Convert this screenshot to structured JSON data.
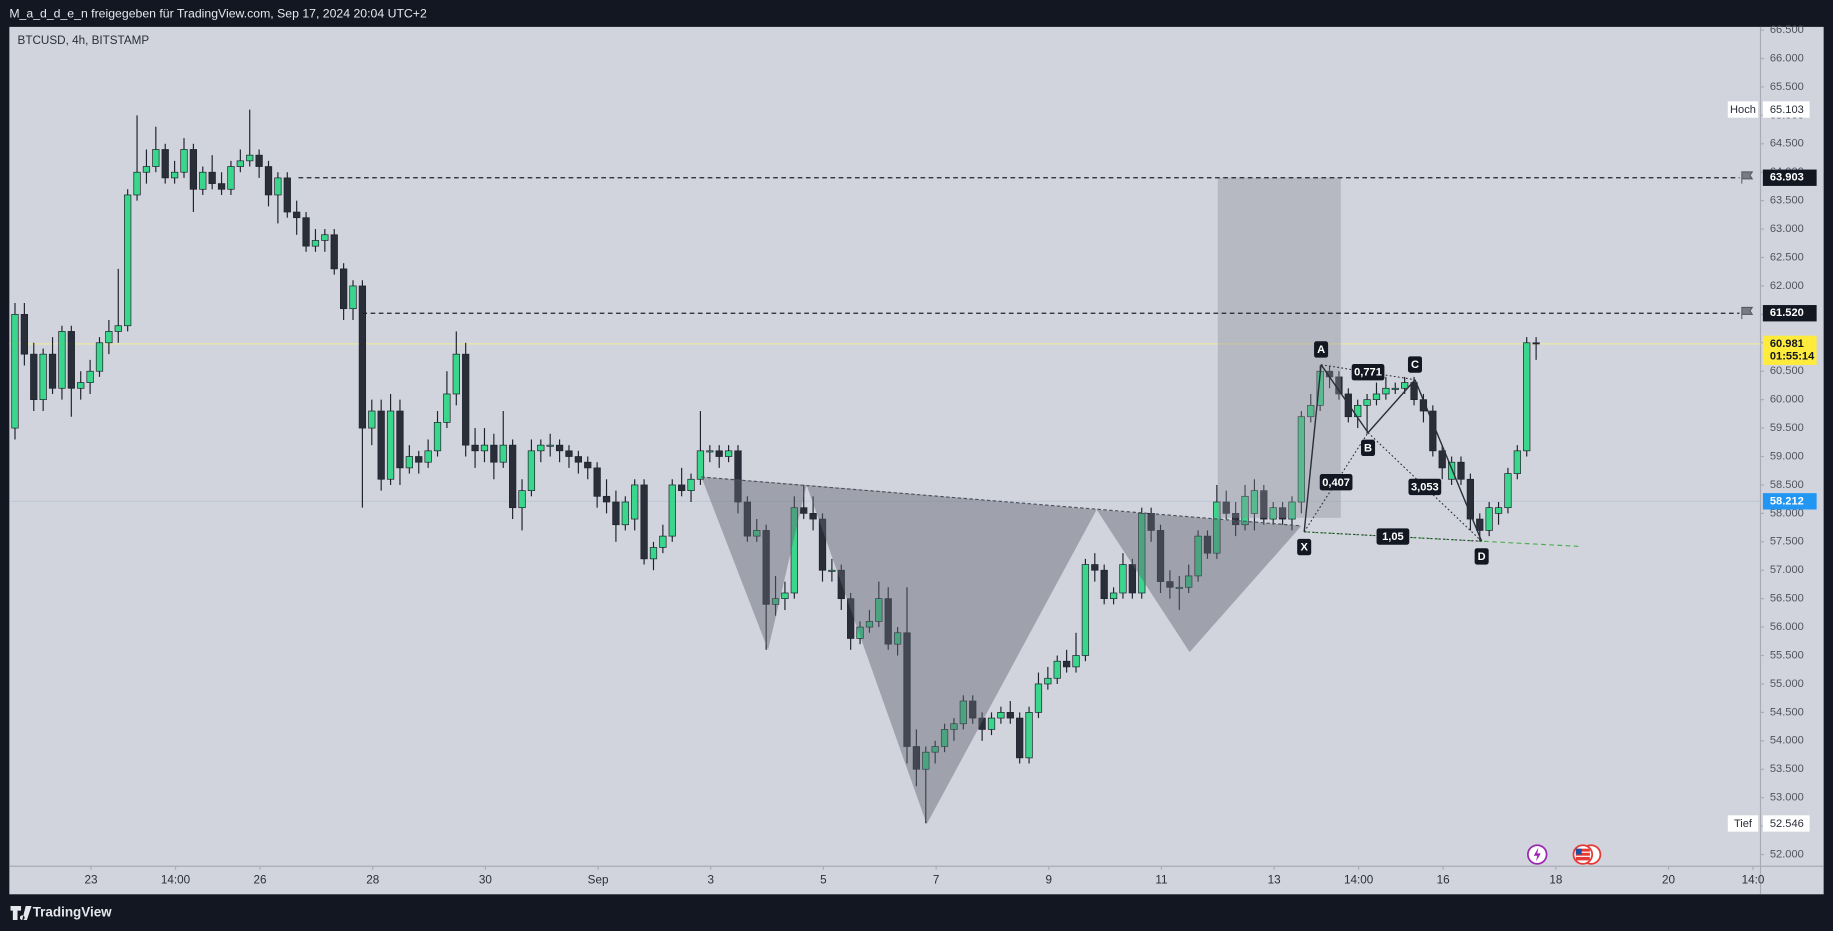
{
  "header": {
    "text": "M_a_d_d_e_n freigegeben für TradingView.com, Sep 17, 2024 20:04 UTC+2"
  },
  "chart_data": {
    "type": "candlestick",
    "title": "BTCUSD, 4h, BITSTAMP",
    "up_color": "#3ad68c",
    "down_color": "#2a2e39",
    "xlim": [
      -0.6,
      185.9
    ],
    "xticks": [
      {
        "value": 8.1,
        "label": "23"
      },
      {
        "value": 17.1,
        "label": "14:00"
      },
      {
        "value": 26.1,
        "label": "26"
      },
      {
        "value": 38.1,
        "label": "28"
      },
      {
        "value": 50.1,
        "label": "30"
      },
      {
        "value": 62.1,
        "label": "Sep"
      },
      {
        "value": 74.1,
        "label": "3"
      },
      {
        "value": 86.1,
        "label": "5"
      },
      {
        "value": 98.1,
        "label": "7"
      },
      {
        "value": 110.1,
        "label": "9"
      },
      {
        "value": 122.1,
        "label": "11"
      },
      {
        "value": 134.1,
        "label": "13"
      },
      {
        "value": 143.1,
        "label": "14:00"
      },
      {
        "value": 152.1,
        "label": "16"
      },
      {
        "value": 164.1,
        "label": "18"
      },
      {
        "value": 176.1,
        "label": "20"
      },
      {
        "value": 185.1,
        "label": "14:0"
      }
    ],
    "ylim": [
      51794,
      66556
    ],
    "yticks": [
      {
        "value": 52000,
        "label": "52.000"
      },
      {
        "value": 52500,
        "label": "52.500"
      },
      {
        "value": 53000,
        "label": "53.000"
      },
      {
        "value": 53500,
        "label": "53.500"
      },
      {
        "value": 54000,
        "label": "54.000"
      },
      {
        "value": 54500,
        "label": "54.500"
      },
      {
        "value": 55000,
        "label": "55.000"
      },
      {
        "value": 55500,
        "label": "55.500"
      },
      {
        "value": 56000,
        "label": "56.000"
      },
      {
        "value": 56500,
        "label": "56.500"
      },
      {
        "value": 57000,
        "label": "57.000"
      },
      {
        "value": 57500,
        "label": "57.500"
      },
      {
        "value": 58000,
        "label": "58.000"
      },
      {
        "value": 58500,
        "label": "58.500"
      },
      {
        "value": 59000,
        "label": "59.000"
      },
      {
        "value": 59500,
        "label": "59.500"
      },
      {
        "value": 60000,
        "label": "60.000"
      },
      {
        "value": 60500,
        "label": "60.500"
      },
      {
        "value": 61000,
        "label": "61.000"
      },
      {
        "value": 61500,
        "label": "61.500"
      },
      {
        "value": 62000,
        "label": "62.000"
      },
      {
        "value": 62500,
        "label": "62.500"
      },
      {
        "value": 63000,
        "label": "63.000"
      },
      {
        "value": 63500,
        "label": "63.500"
      },
      {
        "value": 64000,
        "label": "64.000"
      },
      {
        "value": 64500,
        "label": "64.500"
      },
      {
        "value": 65000,
        "label": "65.000"
      },
      {
        "value": 65500,
        "label": "65.500"
      },
      {
        "value": 66000,
        "label": "66.000"
      },
      {
        "value": 66500,
        "label": "66.500"
      }
    ],
    "ohlc": [
      [
        59500,
        61700,
        59300,
        61500
      ],
      [
        61500,
        61700,
        60600,
        60800
      ],
      [
        60800,
        61000,
        59800,
        60000
      ],
      [
        60000,
        60900,
        59800,
        60800
      ],
      [
        60800,
        61100,
        60100,
        60200
      ],
      [
        60200,
        61300,
        60000,
        61200
      ],
      [
        61200,
        61300,
        59700,
        60200
      ],
      [
        60200,
        60500,
        60000,
        60300
      ],
      [
        60300,
        60700,
        60100,
        60500
      ],
      [
        60500,
        61100,
        60400,
        61000
      ],
      [
        61000,
        61400,
        60800,
        61200
      ],
      [
        61200,
        62300,
        61000,
        61300
      ],
      [
        61300,
        63700,
        61200,
        63600
      ],
      [
        63600,
        65000,
        63500,
        64000
      ],
      [
        64000,
        64400,
        63800,
        64100
      ],
      [
        64100,
        64800,
        64000,
        64400
      ],
      [
        64400,
        64500,
        63800,
        63900
      ],
      [
        63900,
        64200,
        63800,
        64000
      ],
      [
        64000,
        64600,
        63900,
        64400
      ],
      [
        64400,
        64500,
        63300,
        63700
      ],
      [
        63700,
        64100,
        63600,
        64000
      ],
      [
        64000,
        64300,
        63700,
        63800
      ],
      [
        63800,
        64000,
        63600,
        63700
      ],
      [
        63700,
        64200,
        63600,
        64100
      ],
      [
        64100,
        64400,
        64000,
        64200
      ],
      [
        64200,
        65100,
        64100,
        64300
      ],
      [
        64300,
        64400,
        63900,
        64100
      ],
      [
        64100,
        64200,
        63400,
        63600
      ],
      [
        63600,
        64000,
        63100,
        63900
      ],
      [
        63900,
        64000,
        63200,
        63300
      ],
      [
        63300,
        63500,
        62900,
        63200
      ],
      [
        63200,
        63300,
        62600,
        62700
      ],
      [
        62700,
        63000,
        62600,
        62800
      ],
      [
        62800,
        63000,
        62600,
        62900
      ],
      [
        62900,
        63000,
        62200,
        62300
      ],
      [
        62300,
        62400,
        61400,
        61600
      ],
      [
        61600,
        62100,
        61400,
        62000
      ],
      [
        62000,
        62100,
        58100,
        59500
      ],
      [
        59500,
        60000,
        59200,
        59800
      ],
      [
        59800,
        60000,
        58400,
        58600
      ],
      [
        58600,
        60100,
        58500,
        59800
      ],
      [
        59800,
        60000,
        58500,
        58800
      ],
      [
        58800,
        59200,
        58700,
        59000
      ],
      [
        59000,
        59100,
        58700,
        58900
      ],
      [
        58900,
        59300,
        58800,
        59100
      ],
      [
        59100,
        59800,
        59000,
        59600
      ],
      [
        59600,
        60500,
        59500,
        60100
      ],
      [
        60100,
        61200,
        59900,
        60800
      ],
      [
        60800,
        61000,
        59000,
        59200
      ],
      [
        59200,
        59500,
        58800,
        59100
      ],
      [
        59100,
        59500,
        58900,
        59200
      ],
      [
        59200,
        59400,
        58600,
        58900
      ],
      [
        58900,
        59800,
        58800,
        59200
      ],
      [
        59200,
        59300,
        57900,
        58100
      ],
      [
        58100,
        58600,
        57700,
        58400
      ],
      [
        58400,
        59300,
        58300,
        59100
      ],
      [
        59100,
        59300,
        58900,
        59200
      ],
      [
        59200,
        59400,
        59000,
        59200
      ],
      [
        59200,
        59300,
        58900,
        59100
      ],
      [
        59100,
        59200,
        58800,
        59000
      ],
      [
        59000,
        59100,
        58700,
        58900
      ],
      [
        58900,
        59000,
        58600,
        58800
      ],
      [
        58800,
        58900,
        58100,
        58300
      ],
      [
        58300,
        58600,
        58000,
        58200
      ],
      [
        58200,
        58400,
        57500,
        57800
      ],
      [
        57800,
        58300,
        57700,
        58200
      ],
      [
        57900,
        58600,
        57700,
        58500
      ],
      [
        58500,
        58600,
        57100,
        57200
      ],
      [
        57200,
        57500,
        57000,
        57400
      ],
      [
        57400,
        57800,
        57300,
        57600
      ],
      [
        57600,
        58600,
        57500,
        58500
      ],
      [
        58500,
        58800,
        58300,
        58400
      ],
      [
        58400,
        58700,
        58200,
        58600
      ],
      [
        58600,
        59800,
        58500,
        59100
      ],
      [
        59100,
        59200,
        58900,
        59100
      ],
      [
        59100,
        59200,
        58800,
        59000
      ],
      [
        59000,
        59200,
        58900,
        59100
      ],
      [
        59100,
        59200,
        58000,
        58200
      ],
      [
        58200,
        58300,
        57500,
        57600
      ],
      [
        57600,
        57900,
        57500,
        57700
      ],
      [
        57700,
        57800,
        55600,
        56400
      ],
      [
        56400,
        56900,
        56200,
        56500
      ],
      [
        56500,
        56800,
        56300,
        56600
      ],
      [
        56600,
        58300,
        56500,
        58100
      ],
      [
        58100,
        58500,
        57900,
        58000
      ],
      [
        58000,
        58300,
        57700,
        57900
      ],
      [
        57900,
        58000,
        56800,
        57000
      ],
      [
        57000,
        57200,
        56800,
        57000
      ],
      [
        57000,
        57100,
        56300,
        56500
      ],
      [
        56500,
        56600,
        55600,
        55800
      ],
      [
        55800,
        56100,
        55700,
        56000
      ],
      [
        56000,
        56300,
        55900,
        56100
      ],
      [
        56100,
        56800,
        56000,
        56500
      ],
      [
        56500,
        56700,
        55600,
        55700
      ],
      [
        55700,
        56000,
        55500,
        55900
      ],
      [
        55900,
        56700,
        53600,
        53900
      ],
      [
        53900,
        54200,
        53200,
        53500
      ],
      [
        53500,
        53900,
        52550,
        53800
      ],
      [
        53800,
        54000,
        53600,
        53900
      ],
      [
        53900,
        54300,
        53800,
        54200
      ],
      [
        54200,
        54400,
        54000,
        54300
      ],
      [
        54300,
        54800,
        54200,
        54700
      ],
      [
        54700,
        54800,
        54300,
        54400
      ],
      [
        54400,
        54500,
        54000,
        54200
      ],
      [
        54200,
        54500,
        54100,
        54400
      ],
      [
        54400,
        54600,
        54300,
        54500
      ],
      [
        54500,
        54700,
        54300,
        54400
      ],
      [
        54400,
        54500,
        53600,
        53700
      ],
      [
        53700,
        54600,
        53600,
        54500
      ],
      [
        54500,
        55200,
        54400,
        55000
      ],
      [
        55000,
        55300,
        54900,
        55100
      ],
      [
        55100,
        55500,
        55000,
        55400
      ],
      [
        55400,
        55600,
        55200,
        55300
      ],
      [
        55300,
        55900,
        55200,
        55500
      ],
      [
        55500,
        57200,
        55400,
        57100
      ],
      [
        57100,
        57300,
        56800,
        57000
      ],
      [
        57000,
        57100,
        56400,
        56500
      ],
      [
        56500,
        56700,
        56400,
        56600
      ],
      [
        56600,
        57300,
        56500,
        57100
      ],
      [
        57100,
        57200,
        56500,
        56600
      ],
      [
        56600,
        58100,
        56500,
        58000
      ],
      [
        58000,
        58100,
        57500,
        57700
      ],
      [
        57700,
        57800,
        56600,
        56800
      ],
      [
        56800,
        57000,
        56500,
        56700
      ],
      [
        56700,
        56900,
        56300,
        56700
      ],
      [
        56700,
        57100,
        56600,
        56900
      ],
      [
        56900,
        57700,
        56800,
        57600
      ],
      [
        57600,
        57700,
        57200,
        57300
      ],
      [
        57300,
        58500,
        57200,
        58200
      ],
      [
        58200,
        58400,
        57900,
        58000
      ],
      [
        58000,
        58200,
        57600,
        57800
      ],
      [
        57800,
        58500,
        57700,
        58300
      ],
      [
        58000,
        58600,
        57700,
        58400
      ],
      [
        58400,
        58500,
        57800,
        57900
      ],
      [
        57900,
        58200,
        57800,
        58100
      ],
      [
        58100,
        58200,
        57800,
        57900
      ],
      [
        57900,
        58300,
        57700,
        58200
      ],
      [
        58200,
        59800,
        58000,
        59700
      ],
      [
        59700,
        60100,
        59600,
        59900
      ],
      [
        59900,
        60600,
        59800,
        60500
      ],
      [
        60500,
        60600,
        60200,
        60400
      ],
      [
        60400,
        60500,
        60000,
        60100
      ],
      [
        60100,
        60200,
        59600,
        59700
      ],
      [
        59700,
        60000,
        59500,
        59900
      ],
      [
        59900,
        60100,
        59400,
        60000
      ],
      [
        60000,
        60300,
        59900,
        60100
      ],
      [
        60100,
        60400,
        60000,
        60200
      ],
      [
        60200,
        60300,
        60100,
        60200
      ],
      [
        60200,
        60400,
        60100,
        60300
      ],
      [
        60300,
        60400,
        59900,
        60000
      ],
      [
        60000,
        60100,
        59600,
        59800
      ],
      [
        59800,
        59900,
        59000,
        59100
      ],
      [
        59100,
        59200,
        58600,
        58800
      ],
      [
        58600,
        59000,
        58500,
        58900
      ],
      [
        58900,
        59000,
        58500,
        58600
      ],
      [
        58600,
        58700,
        57700,
        57900
      ],
      [
        57900,
        58000,
        57500,
        57700
      ],
      [
        57700,
        58200,
        57600,
        58100
      ],
      [
        58000,
        58200,
        57800,
        58100
      ],
      [
        58100,
        58800,
        58000,
        58700
      ],
      [
        58700,
        59200,
        58600,
        59100
      ],
      [
        59100,
        61100,
        59000,
        61000
      ],
      [
        61000,
        61100,
        60700,
        60981
      ]
    ],
    "levels": [
      {
        "value": 63903,
        "label": "63.903",
        "from": 30.2
      },
      {
        "value": 61520,
        "label": "61.520",
        "from": 37.0
      }
    ],
    "last_price": {
      "value": 60981,
      "label": "60.981",
      "countdown": "01:55:14"
    },
    "marker_price": {
      "value": 58212,
      "label": "58.212"
    },
    "high": {
      "title": "Hoch",
      "value": 65103,
      "label": "65.103"
    },
    "low": {
      "title": "Tief",
      "value": 52546,
      "label": "52.546"
    },
    "zone": {
      "x": [
        128.1,
        141.2
      ],
      "y": [
        57921,
        63903
      ]
    },
    "head_and_shoulders": {
      "points": [
        [
          73.1,
          58640
        ],
        [
          80.2,
          55600
        ],
        [
          84.3,
          58500
        ],
        [
          97.1,
          52535
        ],
        [
          115.2,
          58065
        ],
        [
          125.1,
          55560
        ],
        [
          137.0,
          57780
        ]
      ]
    },
    "xabcd": {
      "points": [
        {
          "label": "X",
          "x": 137.3,
          "y": 57675
        },
        {
          "label": "A",
          "x": 139.1,
          "y": 60615
        },
        {
          "label": "B",
          "x": 144.1,
          "y": 59420
        },
        {
          "label": "C",
          "x": 149.1,
          "y": 60350
        },
        {
          "label": "D",
          "x": 156.2,
          "y": 57510
        }
      ],
      "ratios": [
        "0,407",
        "0,771",
        "3,053",
        "1,05"
      ],
      "extension_to": 166.5
    }
  },
  "footer": {
    "brand": "TradingView"
  }
}
